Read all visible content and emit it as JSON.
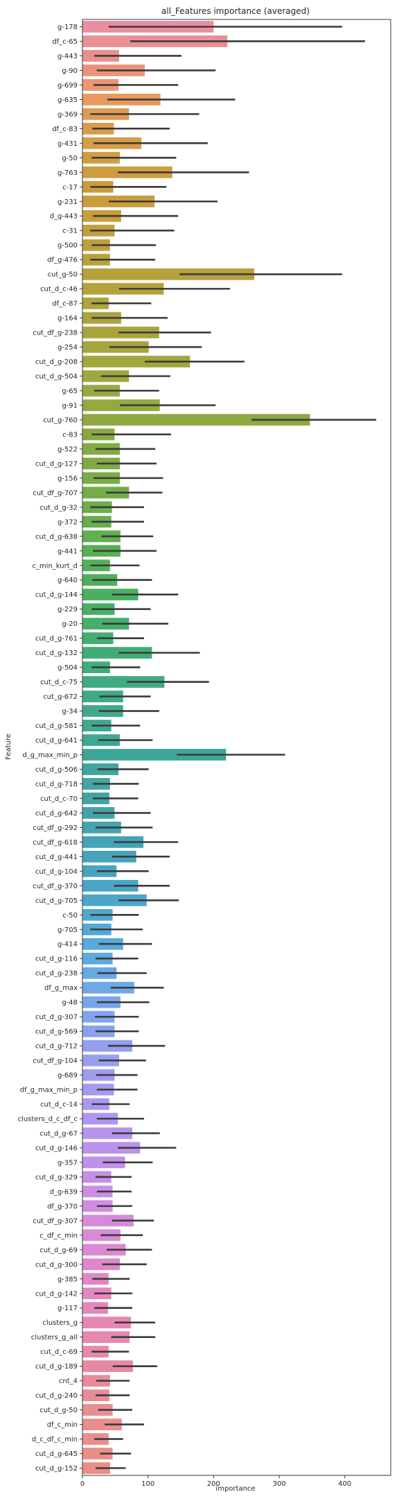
{
  "chart_data": {
    "type": "bar",
    "orientation": "horizontal",
    "title": "all_Features importance (averaged)",
    "xlabel": "importance",
    "ylabel": "Feature",
    "xlim": [
      0,
      470
    ],
    "xticks": [
      0,
      100,
      200,
      300,
      400
    ],
    "grid": false,
    "legend": "none",
    "error_bar_color": "#3b3b3b",
    "categories": [
      "g-178",
      "df_c-65",
      "g-443",
      "g-90",
      "g-699",
      "g-635",
      "g-369",
      "df_c-83",
      "g-431",
      "g-50",
      "g-763",
      "c-17",
      "g-231",
      "d_g-443",
      "c-31",
      "g-500",
      "df_g-476",
      "cut_g-50",
      "cut_d_c-46",
      "df_c-87",
      "g-164",
      "cut_df_g-238",
      "g-254",
      "cut_d_g-208",
      "cut_d_g-504",
      "g-65",
      "g-91",
      "cut_g-760",
      "c-83",
      "g-522",
      "cut_d_g-127",
      "g-156",
      "cut_df_g-707",
      "cut_d_g-32",
      "g-372",
      "cut_d_g-638",
      "g-441",
      "c_min_kurt_d",
      "g-640",
      "cut_d_g-144",
      "g-229",
      "g-20",
      "cut_d_g-761",
      "cut_d_g-132",
      "g-504",
      "cut_d_c-75",
      "cut_g-672",
      "g-34",
      "cut_d_g-581",
      "cut_d_g-641",
      "d_g_max_min_p",
      "cut_d_g-506",
      "cut_d_g-718",
      "cut_d_c-70",
      "cut_d_g-642",
      "cut_df_g-292",
      "cut_df_g-618",
      "cut_d_g-441",
      "cut_d_g-104",
      "cut_df_g-370",
      "cut_d_g-705",
      "c-50",
      "g-705",
      "g-414",
      "cut_d_g-116",
      "cut_d_g-238",
      "df_g_max",
      "g-48",
      "cut_d_g-307",
      "cut_d_g-569",
      "cut_d_g-712",
      "cut_df_g-104",
      "g-689",
      "df_g_max_min_p",
      "cut_d_c-14",
      "clusters_d_c_df_c",
      "cut_d_g-67",
      "cut_d_g-146",
      "g-357",
      "cut_d_g-329",
      "d_g-639",
      "df_g-370",
      "cut_df_g-307",
      "c_df_c_min",
      "cut_d_g-69",
      "cut_d_g-300",
      "g-385",
      "cut_d_g-142",
      "g-117",
      "clusters_g",
      "clusters_g_all",
      "cut_d_c-69",
      "cut_d_g-189",
      "cnt_4",
      "cut_d_g-240",
      "cut_d_g-50",
      "df_c_min",
      "d_c_df_c_min",
      "cut_d_g-645",
      "cut_d_g-152"
    ],
    "values": [
      200,
      221,
      56,
      95,
      55,
      119,
      71,
      48,
      90,
      57,
      137,
      47,
      110,
      59,
      49,
      42,
      42,
      262,
      124,
      40,
      59,
      117,
      101,
      164,
      71,
      57,
      118,
      347,
      49,
      57,
      57,
      57,
      71,
      45,
      44,
      58,
      58,
      42,
      53,
      85,
      49,
      71,
      47,
      106,
      42,
      125,
      62,
      62,
      44,
      57,
      219,
      55,
      42,
      41,
      49,
      59,
      93,
      82,
      52,
      85,
      98,
      46,
      44,
      62,
      46,
      52,
      79,
      58,
      49,
      49,
      76,
      56,
      49,
      48,
      41,
      54,
      76,
      88,
      65,
      44,
      46,
      46,
      78,
      58,
      66,
      57,
      40,
      44,
      39,
      74,
      72,
      40,
      77,
      42,
      41,
      46,
      60,
      40,
      46,
      42
    ],
    "errors": [
      [
        40,
        396
      ],
      [
        73,
        431
      ],
      [
        18,
        151
      ],
      [
        22,
        203
      ],
      [
        17,
        146
      ],
      [
        38,
        233
      ],
      [
        12,
        178
      ],
      [
        15,
        133
      ],
      [
        17,
        191
      ],
      [
        14,
        143
      ],
      [
        54,
        254
      ],
      [
        12,
        128
      ],
      [
        40,
        206
      ],
      [
        16,
        146
      ],
      [
        12,
        140
      ],
      [
        14,
        112
      ],
      [
        12,
        111
      ],
      [
        148,
        396
      ],
      [
        56,
        225
      ],
      [
        14,
        105
      ],
      [
        14,
        130
      ],
      [
        55,
        196
      ],
      [
        41,
        182
      ],
      [
        95,
        247
      ],
      [
        28,
        134
      ],
      [
        18,
        117
      ],
      [
        57,
        203
      ],
      [
        258,
        448
      ],
      [
        14,
        135
      ],
      [
        20,
        111
      ],
      [
        22,
        113
      ],
      [
        17,
        123
      ],
      [
        36,
        122
      ],
      [
        12,
        94
      ],
      [
        14,
        94
      ],
      [
        29,
        108
      ],
      [
        16,
        113
      ],
      [
        12,
        87
      ],
      [
        15,
        106
      ],
      [
        45,
        146
      ],
      [
        14,
        104
      ],
      [
        30,
        131
      ],
      [
        22,
        94
      ],
      [
        55,
        179
      ],
      [
        14,
        88
      ],
      [
        68,
        193
      ],
      [
        26,
        104
      ],
      [
        25,
        117
      ],
      [
        14,
        88
      ],
      [
        24,
        107
      ],
      [
        144,
        309
      ],
      [
        23,
        101
      ],
      [
        16,
        86
      ],
      [
        16,
        85
      ],
      [
        16,
        104
      ],
      [
        20,
        107
      ],
      [
        48,
        146
      ],
      [
        45,
        133
      ],
      [
        22,
        101
      ],
      [
        48,
        133
      ],
      [
        55,
        147
      ],
      [
        12,
        86
      ],
      [
        12,
        92
      ],
      [
        25,
        106
      ],
      [
        20,
        85
      ],
      [
        23,
        98
      ],
      [
        43,
        124
      ],
      [
        22,
        102
      ],
      [
        19,
        86
      ],
      [
        20,
        86
      ],
      [
        39,
        126
      ],
      [
        25,
        97
      ],
      [
        21,
        84
      ],
      [
        22,
        84
      ],
      [
        14,
        72
      ],
      [
        22,
        94
      ],
      [
        45,
        118
      ],
      [
        54,
        143
      ],
      [
        31,
        107
      ],
      [
        20,
        75
      ],
      [
        22,
        75
      ],
      [
        22,
        76
      ],
      [
        45,
        109
      ],
      [
        28,
        92
      ],
      [
        37,
        106
      ],
      [
        30,
        98
      ],
      [
        15,
        72
      ],
      [
        18,
        76
      ],
      [
        18,
        76
      ],
      [
        49,
        111
      ],
      [
        44,
        111
      ],
      [
        14,
        71
      ],
      [
        46,
        114
      ],
      [
        21,
        72
      ],
      [
        20,
        72
      ],
      [
        24,
        76
      ],
      [
        34,
        94
      ],
      [
        18,
        62
      ],
      [
        27,
        74
      ],
      [
        20,
        66
      ]
    ],
    "colors": [
      "#ea8ea1",
      "#ea8f96",
      "#eb908b",
      "#eb937a",
      "#ec9671",
      "#e7995e",
      "#dd9b53",
      "#d89b4d",
      "#d69c46",
      "#d39c42",
      "#cf9c3f",
      "#cb9c3d",
      "#c99d3d",
      "#c69e3d",
      "#c39e3d",
      "#bf9f3d",
      "#bba03d",
      "#b7a13d",
      "#b5a23d",
      "#b1a33d",
      "#aca43d",
      "#a9a53d",
      "#a6a63d",
      "#a2a73d",
      "#9ea83e",
      "#99a93f",
      "#94a940",
      "#8ea942",
      "#89a843",
      "#83aa45",
      "#7eab46",
      "#78ac48",
      "#72ad4a",
      "#6cad4c",
      "#66ae4e",
      "#60af50",
      "#5aaf53",
      "#54b056",
      "#4fb05a",
      "#4ab05f",
      "#46b065",
      "#43af6b",
      "#42ae71",
      "#41ad76",
      "#40ac7c",
      "#40ab81",
      "#40aa86",
      "#40a98b",
      "#40a88f",
      "#40a794",
      "#40a698",
      "#40a59c",
      "#41a5a1",
      "#41a4a6",
      "#42a4ab",
      "#43a3b0",
      "#44a3b5",
      "#45a4ba",
      "#47a4c0",
      "#49a5c5",
      "#4ca6cb",
      "#4fa8d1",
      "#53a9d7",
      "#58a9dc",
      "#5fa9e0",
      "#67a9e3",
      "#6fa8e6",
      "#78a7e9",
      "#81a4ec",
      "#8aa2ee",
      "#92a0ef",
      "#989ef0",
      "#9e9cf0",
      "#a49af0",
      "#aa98f0",
      "#b096ef",
      "#b694ee",
      "#bb92ec",
      "#c090ea",
      "#c68fe7",
      "#cb8ee4",
      "#d08ce1",
      "#d58adc",
      "#d989d7",
      "#dd88d2",
      "#e087cc",
      "#e286c6",
      "#e486c0",
      "#e586b9",
      "#e687b3",
      "#e688ad",
      "#e789a7",
      "#e789a1",
      "#e88a9c",
      "#e88b97",
      "#e98c93",
      "#e98d90",
      "#ea8e8d",
      "#ea8e8b",
      "#ea8e89"
    ]
  }
}
